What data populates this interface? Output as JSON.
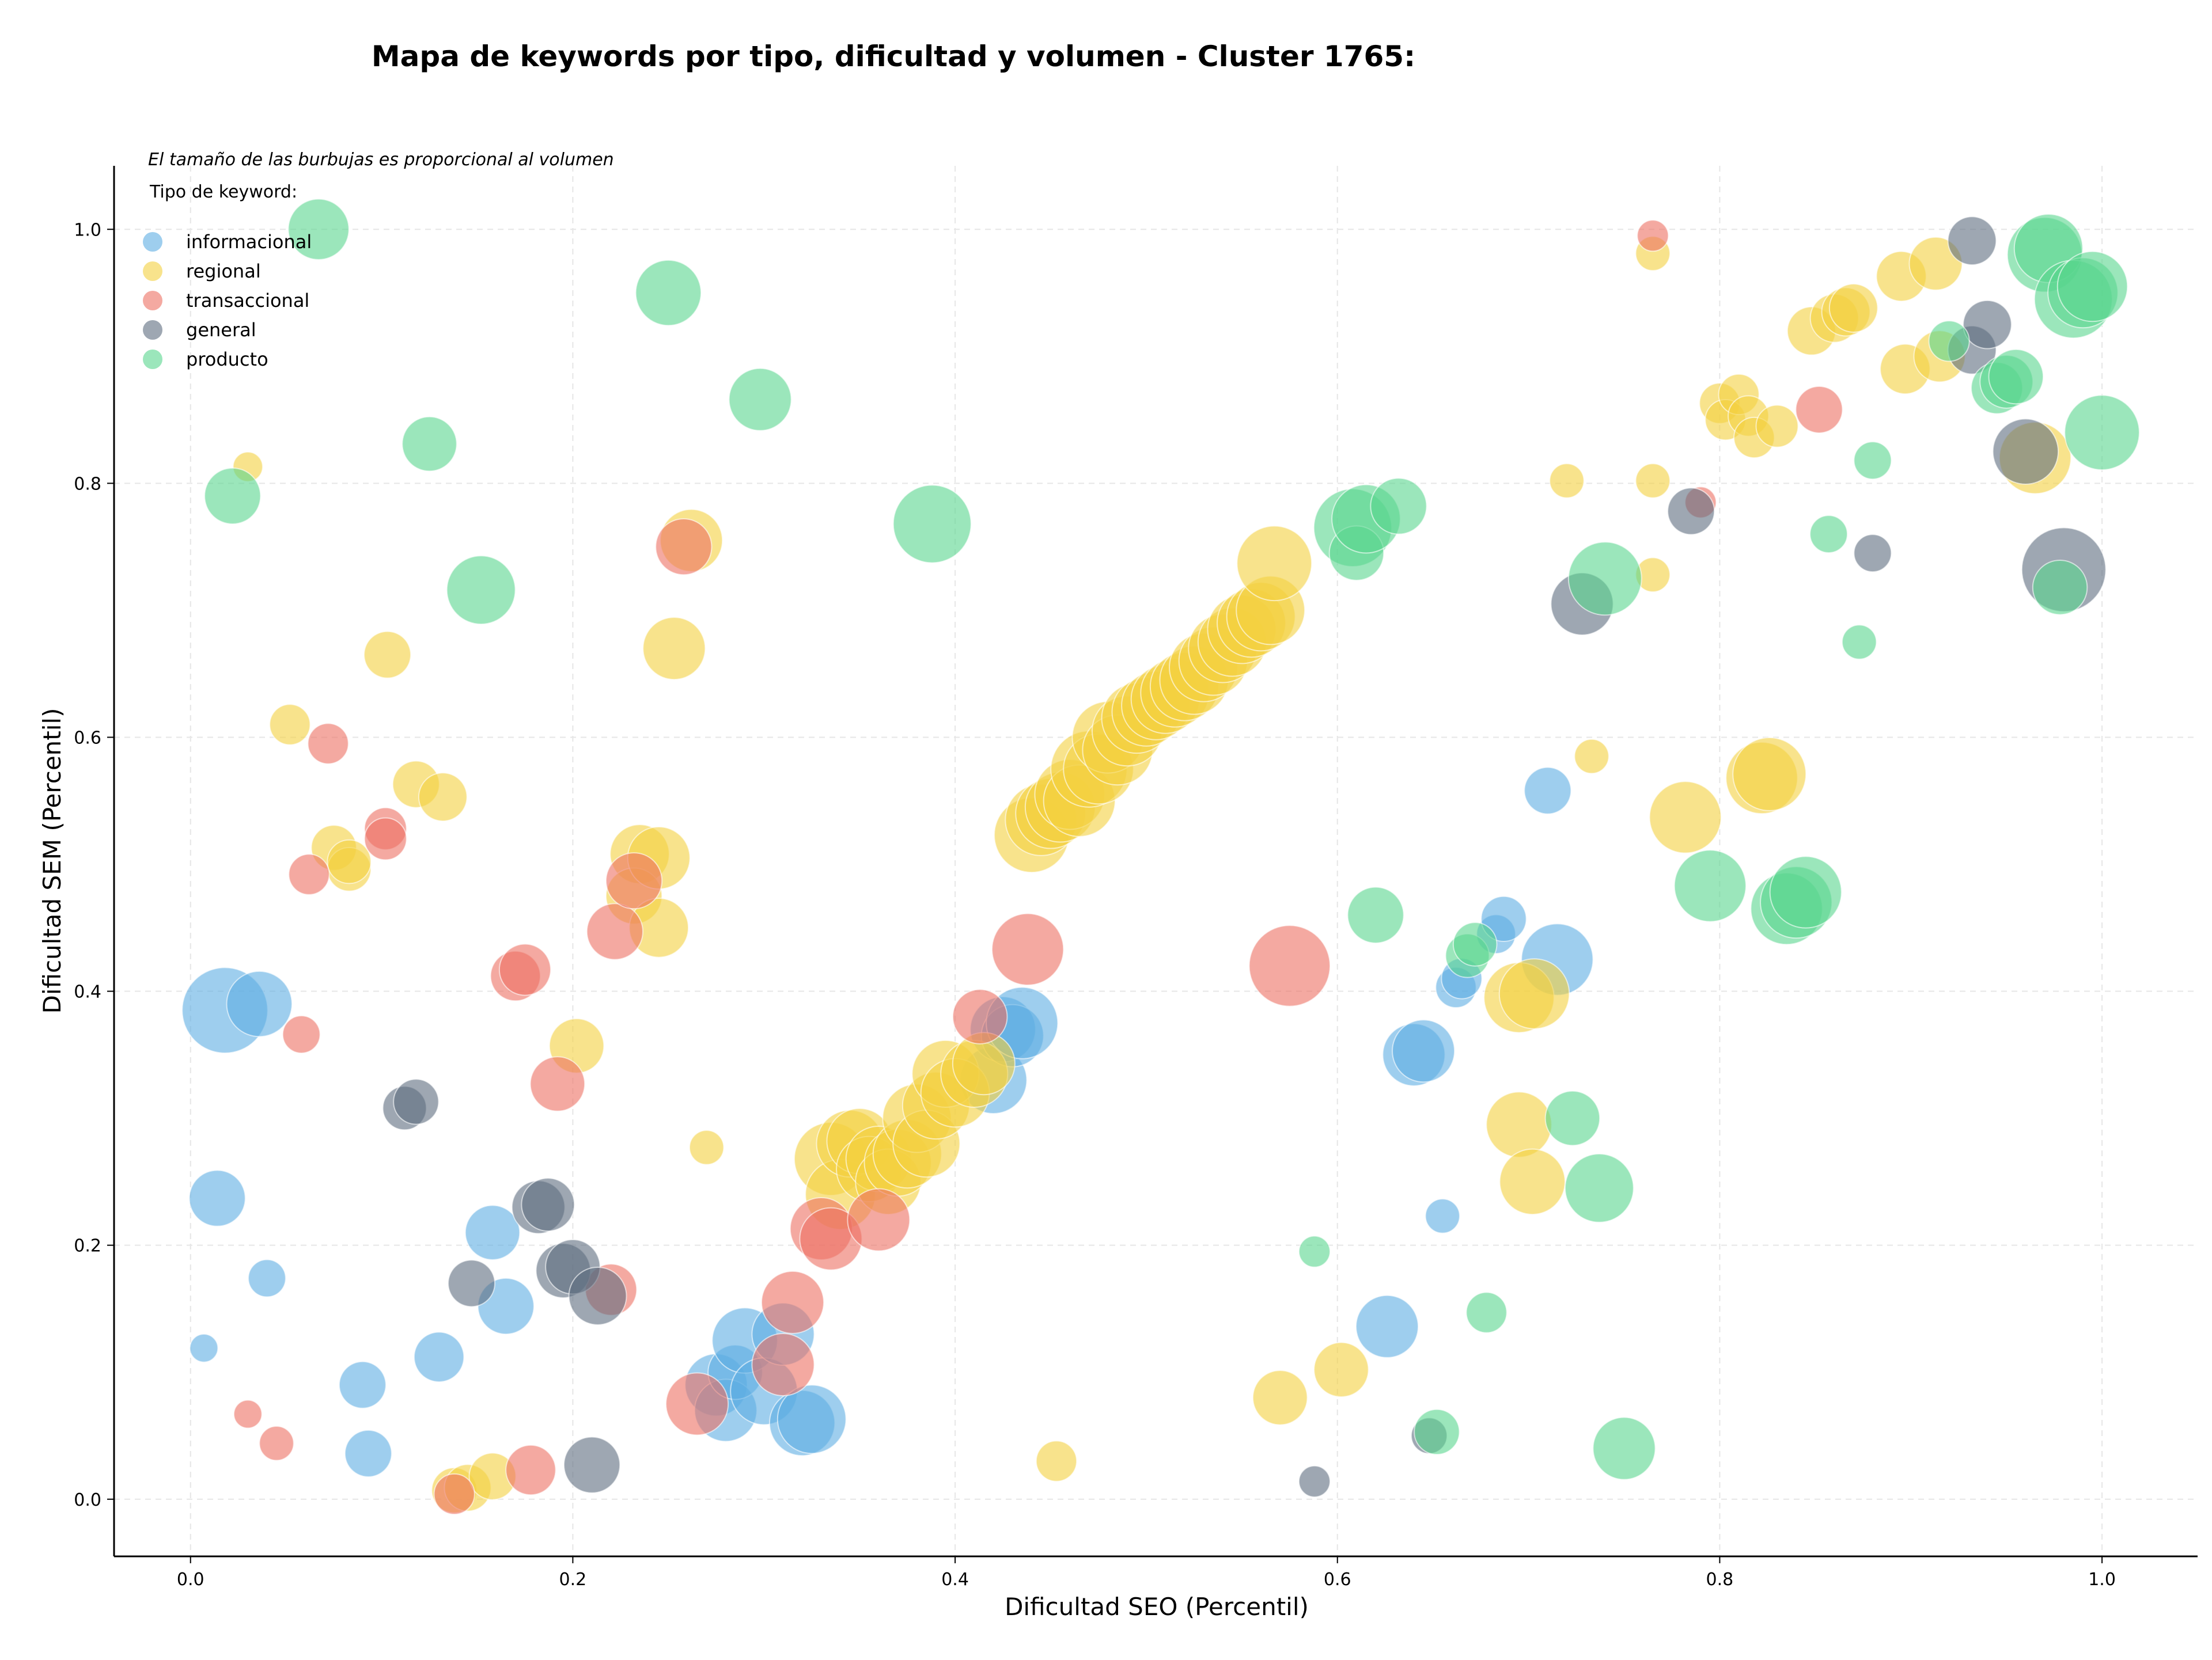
{
  "chart_data": {
    "type": "scatter",
    "title": "Mapa de keywords por tipo, dificultad y volumen - Cluster 1765:",
    "xlabel": "Dificultad SEO (Percentil)",
    "ylabel": "Dificultad SEM (Percentil)",
    "xlim": [
      -0.04,
      1.05
    ],
    "ylim": [
      -0.045,
      1.05
    ],
    "xticks": [
      0.0,
      0.2,
      0.4,
      0.6,
      0.8,
      1.0
    ],
    "yticks": [
      0.0,
      0.2,
      0.4,
      0.6,
      0.8,
      1.0
    ],
    "xtick_labels": [
      "0.0",
      "0.2",
      "0.4",
      "0.6",
      "0.8",
      "1.0"
    ],
    "ytick_labels": [
      "0.0",
      "0.2",
      "0.4",
      "0.6",
      "0.8",
      "1.0"
    ],
    "grid": true,
    "note": "El tamaño de las burbujas es proporcional al volumen",
    "legend_title": "Tipo de keyword:",
    "legend_position": "top-left",
    "series": [
      {
        "name": "informacional",
        "color": "#5dade2",
        "points": [
          [
            0.018,
            0.385,
            5.5
          ],
          [
            0.036,
            0.39,
            4.2
          ],
          [
            0.014,
            0.237,
            3.6
          ],
          [
            0.04,
            0.174,
            2.4
          ],
          [
            0.007,
            0.119,
            1.8
          ],
          [
            0.09,
            0.09,
            3.0
          ],
          [
            0.093,
            0.036,
            3.0
          ],
          [
            0.13,
            0.112,
            3.2
          ],
          [
            0.158,
            0.21,
            3.5
          ],
          [
            0.165,
            0.152,
            3.6
          ],
          [
            0.275,
            0.09,
            4.0
          ],
          [
            0.28,
            0.07,
            4.0
          ],
          [
            0.285,
            0.1,
            3.5
          ],
          [
            0.29,
            0.125,
            4.2
          ],
          [
            0.3,
            0.085,
            4.3
          ],
          [
            0.31,
            0.13,
            4.0
          ],
          [
            0.32,
            0.06,
            4.2
          ],
          [
            0.325,
            0.063,
            4.4
          ],
          [
            0.42,
            0.33,
            4.3
          ],
          [
            0.425,
            0.37,
            4.2
          ],
          [
            0.43,
            0.365,
            4.0
          ],
          [
            0.435,
            0.375,
            4.6
          ],
          [
            0.64,
            0.35,
            4.0
          ],
          [
            0.645,
            0.353,
            4.0
          ],
          [
            0.662,
            0.403,
            2.6
          ],
          [
            0.665,
            0.41,
            2.6
          ],
          [
            0.655,
            0.223,
            2.2
          ],
          [
            0.683,
            0.445,
            2.5
          ],
          [
            0.687,
            0.457,
            2.9
          ],
          [
            0.71,
            0.558,
            3.0
          ],
          [
            0.715,
            0.425,
            4.6
          ],
          [
            0.626,
            0.136,
            4.0
          ]
        ]
      },
      {
        "name": "regional",
        "color": "#f4d03f",
        "points": [
          [
            0.03,
            0.813,
            1.9
          ],
          [
            0.052,
            0.61,
            2.6
          ],
          [
            0.075,
            0.513,
            2.9
          ],
          [
            0.083,
            0.496,
            2.8
          ],
          [
            0.083,
            0.502,
            2.8
          ],
          [
            0.103,
            0.665,
            3.0
          ],
          [
            0.118,
            0.563,
            3.0
          ],
          [
            0.132,
            0.553,
            3.1
          ],
          [
            0.202,
            0.357,
            3.5
          ],
          [
            0.235,
            0.508,
            3.8
          ],
          [
            0.232,
            0.475,
            3.6
          ],
          [
            0.245,
            0.505,
            4.0
          ],
          [
            0.245,
            0.45,
            3.8
          ],
          [
            0.253,
            0.67,
            4.0
          ],
          [
            0.262,
            0.755,
            4.0
          ],
          [
            0.27,
            0.277,
            2.2
          ],
          [
            0.138,
            0.007,
            2.9
          ],
          [
            0.145,
            0.009,
            3.0
          ],
          [
            0.158,
            0.018,
            3.0
          ],
          [
            0.453,
            0.03,
            2.6
          ],
          [
            0.335,
            0.268,
            4.7
          ],
          [
            0.34,
            0.24,
            4.5
          ],
          [
            0.345,
            0.28,
            4.3
          ],
          [
            0.35,
            0.282,
            4.2
          ],
          [
            0.355,
            0.26,
            4.2
          ],
          [
            0.36,
            0.268,
            4.2
          ],
          [
            0.365,
            0.25,
            4.2
          ],
          [
            0.37,
            0.265,
            4.3
          ],
          [
            0.375,
            0.272,
            4.4
          ],
          [
            0.38,
            0.3,
            4.4
          ],
          [
            0.385,
            0.28,
            4.3
          ],
          [
            0.39,
            0.31,
            4.3
          ],
          [
            0.395,
            0.335,
            4.3
          ],
          [
            0.4,
            0.32,
            4.4
          ],
          [
            0.41,
            0.335,
            4.3
          ],
          [
            0.415,
            0.343,
            4.0
          ],
          [
            0.44,
            0.523,
            4.8
          ],
          [
            0.445,
            0.535,
            4.6
          ],
          [
            0.45,
            0.54,
            4.5
          ],
          [
            0.455,
            0.545,
            4.5
          ],
          [
            0.46,
            0.555,
            4.5
          ],
          [
            0.465,
            0.55,
            4.6
          ],
          [
            0.47,
            0.575,
            4.9
          ],
          [
            0.475,
            0.575,
            4.5
          ],
          [
            0.48,
            0.6,
            4.6
          ],
          [
            0.485,
            0.59,
            4.5
          ],
          [
            0.49,
            0.605,
            4.5
          ],
          [
            0.495,
            0.615,
            4.5
          ],
          [
            0.5,
            0.62,
            4.4
          ],
          [
            0.505,
            0.625,
            4.4
          ],
          [
            0.51,
            0.63,
            4.4
          ],
          [
            0.515,
            0.635,
            4.4
          ],
          [
            0.52,
            0.64,
            4.4
          ],
          [
            0.525,
            0.645,
            4.4
          ],
          [
            0.53,
            0.655,
            4.4
          ],
          [
            0.535,
            0.66,
            4.4
          ],
          [
            0.54,
            0.67,
            4.4
          ],
          [
            0.545,
            0.675,
            4.4
          ],
          [
            0.55,
            0.685,
            4.4
          ],
          [
            0.555,
            0.69,
            4.4
          ],
          [
            0.56,
            0.695,
            4.4
          ],
          [
            0.565,
            0.7,
            4.4
          ],
          [
            0.567,
            0.737,
            4.8
          ],
          [
            0.57,
            0.08,
            3.5
          ],
          [
            0.602,
            0.102,
            3.5
          ],
          [
            0.695,
            0.295,
            4.2
          ],
          [
            0.695,
            0.395,
            4.5
          ],
          [
            0.703,
            0.398,
            4.5
          ],
          [
            0.702,
            0.25,
            4.2
          ],
          [
            0.72,
            0.802,
            2.2
          ],
          [
            0.733,
            0.585,
            2.2
          ],
          [
            0.765,
            0.802,
            2.2
          ],
          [
            0.765,
            0.728,
            2.2
          ],
          [
            0.765,
            0.981,
            2.2
          ],
          [
            0.782,
            0.537,
            4.6
          ],
          [
            0.8,
            0.863,
            2.6
          ],
          [
            0.803,
            0.85,
            2.6
          ],
          [
            0.81,
            0.87,
            2.6
          ],
          [
            0.815,
            0.853,
            2.6
          ],
          [
            0.818,
            0.836,
            2.6
          ],
          [
            0.822,
            0.568,
            4.6
          ],
          [
            0.826,
            0.571,
            4.7
          ],
          [
            0.83,
            0.845,
            2.7
          ],
          [
            0.848,
            0.92,
            3.1
          ],
          [
            0.86,
            0.93,
            3.1
          ],
          [
            0.866,
            0.935,
            3.1
          ],
          [
            0.87,
            0.938,
            3.1
          ],
          [
            0.895,
            0.963,
            3.2
          ],
          [
            0.897,
            0.89,
            3.2
          ],
          [
            0.913,
            0.973,
            3.4
          ],
          [
            0.915,
            0.9,
            3.3
          ],
          [
            0.965,
            0.82,
            4.6
          ]
        ]
      },
      {
        "name": "transaccional",
        "color": "#ec7063",
        "points": [
          [
            0.03,
            0.067,
            1.8
          ],
          [
            0.045,
            0.044,
            2.2
          ],
          [
            0.058,
            0.366,
            2.4
          ],
          [
            0.062,
            0.492,
            2.6
          ],
          [
            0.072,
            0.595,
            2.6
          ],
          [
            0.102,
            0.528,
            2.7
          ],
          [
            0.102,
            0.52,
            2.7
          ],
          [
            0.17,
            0.412,
            3.2
          ],
          [
            0.175,
            0.417,
            3.3
          ],
          [
            0.192,
            0.327,
            3.5
          ],
          [
            0.178,
            0.023,
            3.2
          ],
          [
            0.138,
            0.004,
            2.6
          ],
          [
            0.222,
            0.447,
            3.6
          ],
          [
            0.232,
            0.487,
            3.6
          ],
          [
            0.258,
            0.75,
            3.6
          ],
          [
            0.22,
            0.165,
            3.3
          ],
          [
            0.265,
            0.075,
            4.0
          ],
          [
            0.31,
            0.106,
            4.0
          ],
          [
            0.315,
            0.155,
            4.0
          ],
          [
            0.33,
            0.213,
            4.0
          ],
          [
            0.335,
            0.205,
            4.0
          ],
          [
            0.36,
            0.22,
            4.0
          ],
          [
            0.413,
            0.38,
            3.5
          ],
          [
            0.438,
            0.433,
            4.6
          ],
          [
            0.575,
            0.42,
            5.2
          ],
          [
            0.765,
            0.995,
            2.0
          ],
          [
            0.79,
            0.785,
            2.0
          ],
          [
            0.852,
            0.858,
            3.0
          ]
        ]
      },
      {
        "name": "general",
        "color": "#5d6d7e",
        "points": [
          [
            0.112,
            0.308,
            2.8
          ],
          [
            0.118,
            0.313,
            2.9
          ],
          [
            0.147,
            0.17,
            3.0
          ],
          [
            0.182,
            0.23,
            3.4
          ],
          [
            0.187,
            0.232,
            3.4
          ],
          [
            0.195,
            0.18,
            3.5
          ],
          [
            0.2,
            0.183,
            3.5
          ],
          [
            0.21,
            0.027,
            3.6
          ],
          [
            0.213,
            0.16,
            3.7
          ],
          [
            0.588,
            0.014,
            2.0
          ],
          [
            0.648,
            0.05,
            2.3
          ],
          [
            0.728,
            0.705,
            4.0
          ],
          [
            0.785,
            0.778,
            3.0
          ],
          [
            0.88,
            0.745,
            2.4
          ],
          [
            0.932,
            0.991,
            3.1
          ],
          [
            0.932,
            0.905,
            3.1
          ],
          [
            0.94,
            0.925,
            3.1
          ],
          [
            0.96,
            0.825,
            4.2
          ],
          [
            0.98,
            0.732,
            5.4
          ]
        ]
      },
      {
        "name": "producto",
        "color": "#58d68d",
        "points": [
          [
            0.022,
            0.79,
            3.6
          ],
          [
            0.067,
            1.0,
            3.9
          ],
          [
            0.125,
            0.831,
            3.5
          ],
          [
            0.152,
            0.716,
            4.4
          ],
          [
            0.25,
            0.95,
            4.2
          ],
          [
            0.298,
            0.866,
            4.0
          ],
          [
            0.388,
            0.768,
            5.0
          ],
          [
            0.588,
            0.195,
            2.0
          ],
          [
            0.608,
            0.765,
            5.0
          ],
          [
            0.61,
            0.745,
            3.5
          ],
          [
            0.615,
            0.772,
            4.4
          ],
          [
            0.62,
            0.46,
            3.6
          ],
          [
            0.632,
            0.782,
            3.6
          ],
          [
            0.652,
            0.053,
            2.9
          ],
          [
            0.668,
            0.428,
            2.8
          ],
          [
            0.672,
            0.437,
            2.8
          ],
          [
            0.678,
            0.147,
            2.6
          ],
          [
            0.723,
            0.3,
            3.5
          ],
          [
            0.737,
            0.245,
            4.4
          ],
          [
            0.74,
            0.725,
            4.7
          ],
          [
            0.75,
            0.04,
            4.0
          ],
          [
            0.795,
            0.483,
            4.6
          ],
          [
            0.835,
            0.465,
            4.6
          ],
          [
            0.84,
            0.47,
            4.6
          ],
          [
            0.845,
            0.478,
            4.6
          ],
          [
            0.857,
            0.76,
            2.4
          ],
          [
            0.873,
            0.675,
            2.2
          ],
          [
            0.88,
            0.818,
            2.4
          ],
          [
            0.92,
            0.912,
            2.6
          ],
          [
            0.945,
            0.875,
            3.3
          ],
          [
            0.95,
            0.88,
            3.4
          ],
          [
            0.955,
            0.884,
            3.5
          ],
          [
            0.97,
            0.98,
            4.8
          ],
          [
            0.972,
            0.985,
            4.4
          ],
          [
            0.978,
            0.718,
            3.5
          ],
          [
            0.985,
            0.945,
            5.0
          ],
          [
            0.99,
            0.95,
            4.5
          ],
          [
            0.995,
            0.955,
            4.5
          ],
          [
            1.0,
            0.84,
            4.8
          ]
        ]
      }
    ]
  }
}
